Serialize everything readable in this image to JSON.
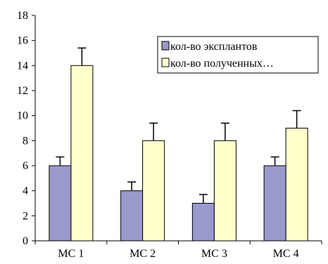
{
  "chart_data": {
    "type": "bar",
    "categories": [
      "МС 1",
      "МС 2",
      "МС 3",
      "МС 4"
    ],
    "series": [
      {
        "name": "кол-во эксплантов",
        "values": [
          6,
          4,
          3,
          6
        ],
        "error": [
          0.7,
          0.7,
          0.7,
          0.7
        ],
        "color": "#9999cc"
      },
      {
        "name": "кол-во полученных…",
        "values": [
          14,
          8,
          8,
          9
        ],
        "error": [
          1.4,
          1.4,
          1.4,
          1.4
        ],
        "color": "#ffffcc"
      }
    ],
    "ylim": [
      0,
      18
    ],
    "yticks": [
      0,
      2,
      4,
      6,
      8,
      10,
      12,
      14,
      16,
      18
    ],
    "legend_position": "top-right",
    "grid": false,
    "error_bars": true,
    "colors": {
      "axis": "#000000",
      "bar_outline": "#000000",
      "error_bar": "#000000"
    }
  }
}
